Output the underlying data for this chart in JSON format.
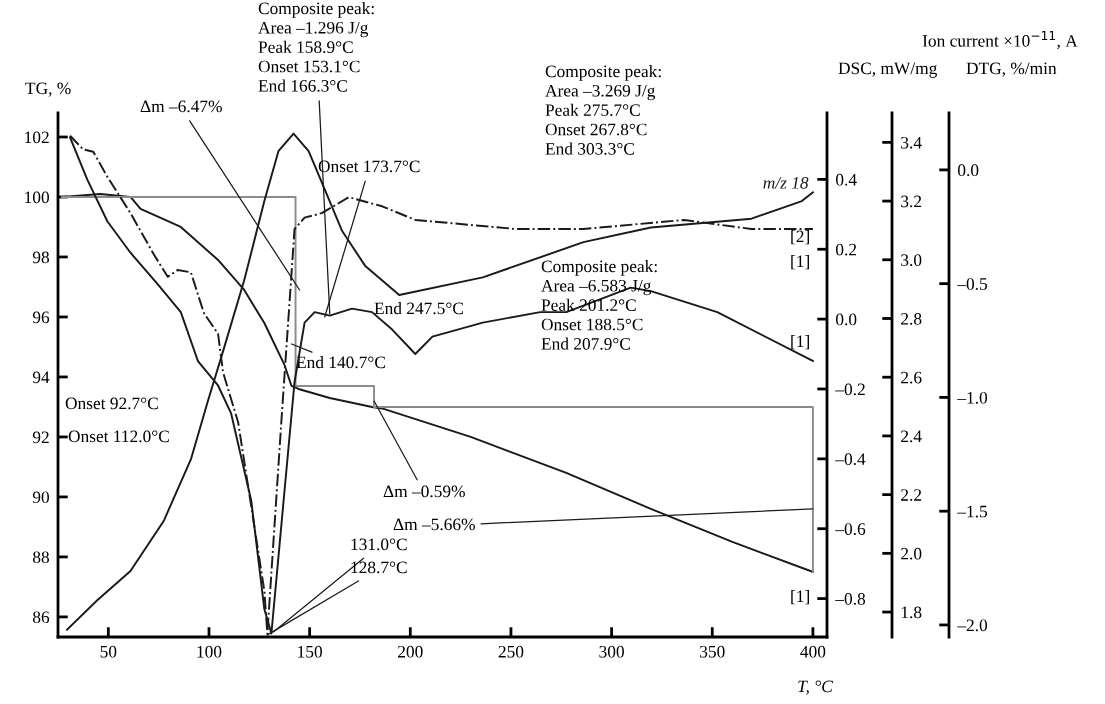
{
  "chart_data": [
    {
      "type": "line",
      "xlabel": "T, °C",
      "ylabel": "TG, %",
      "y2label": "DSC, mW/mg",
      "y3label": "Ion current ×10$^{−11}$, A",
      "xlim": [
        25,
        407
      ],
      "xticks": [
        50,
        100,
        150,
        200,
        250,
        300,
        350,
        400
      ],
      "ylim": [
        85.33,
        102.8
      ],
      "yticks": [
        86,
        88,
        90,
        92,
        94,
        96,
        98,
        100,
        102
      ],
      "y2lim": [
        -0.91,
        0.59
      ],
      "y2ticks": [
        {
          "value": -0.8,
          "label": "–0.8"
        },
        {
          "value": -0.6,
          "label": "–0.6"
        },
        {
          "value": -0.4,
          "label": "–0.4"
        },
        {
          "value": -0.2,
          "label": "–0.2"
        },
        {
          "value": 0,
          "label": "0.0"
        },
        0.2,
        0.4
      ],
      "y3lim": [
        1.715,
        3.5
      ],
      "y3ticks": [
        1.8,
        {
          "value": 2,
          "label": "2.0"
        },
        2.2,
        2.4,
        2.6,
        2.8,
        {
          "value": 3,
          "label": "3.0"
        },
        3.2,
        3.4
      ],
      "marker": "none",
      "series": [
        {
          "color": "#1a1a1a",
          "line_style": "solid",
          "x": [
            27,
            46,
            61,
            66,
            86,
            104.5,
            117.5,
            127.5,
            137.5,
            141,
            144.5,
            160,
            181,
            186,
            230,
            277.5,
            319.5,
            360,
            400
          ],
          "values": [
            100.0,
            100.1,
            100.0,
            99.6,
            99.0,
            97.9,
            96.9,
            95.8,
            94.4,
            93.7,
            93.6,
            93.3,
            93.0,
            92.95,
            92.0,
            90.8,
            89.6,
            88.5,
            87.5
          ]
        },
        {
          "color": "#1a1a1a",
          "line_style": "solid",
          "axis": "y2",
          "x": [
            31,
            39.5,
            49.5,
            61,
            74.5,
            86,
            94.5,
            104.5,
            111,
            121,
            127.5,
            131,
            142.5,
            147.5,
            152.5,
            160,
            171,
            181,
            191,
            202.5,
            211,
            236,
            264.5,
            277.5,
            309.5,
            319.5,
            352.5,
            400
          ],
          "values": [
            0.52,
            0.4,
            0.28,
            0.19,
            0.1,
            0.02,
            -0.12,
            -0.19,
            -0.27,
            -0.52,
            -0.83,
            -0.9,
            -0.18,
            -0.01,
            0.02,
            0.01,
            0.03,
            0.02,
            -0.03,
            -0.1,
            -0.05,
            -0.01,
            0.02,
            0.02,
            0.09,
            0.08,
            0.02,
            -0.12
          ]
        },
        {
          "name": "m/z 18",
          "color": "#1a1a1a",
          "line_style": "solid",
          "axis": "y3",
          "x": [
            29.5,
            44.5,
            61,
            77.5,
            91,
            99.5,
            107.5,
            117.5,
            127.5,
            134.5,
            142,
            149.5,
            157.5,
            166,
            177.5,
            194.5,
            236,
            286,
            319.5,
            369.5,
            394.5,
            400
          ],
          "values": [
            1.74,
            1.84,
            1.94,
            2.11,
            2.32,
            2.52,
            2.7,
            2.93,
            3.2,
            3.37,
            3.43,
            3.37,
            3.24,
            3.1,
            2.98,
            2.88,
            2.94,
            3.06,
            3.11,
            3.14,
            3.2,
            3.23
          ]
        },
        {
          "color": "#8c8c8c",
          "line_style": "solid",
          "x": [
            27,
            143,
            143,
            182,
            182,
            400,
            400
          ],
          "values": [
            100.0,
            100.0,
            93.7,
            93.7,
            93.0,
            93.0,
            87.5
          ]
        }
      ],
      "annotations": [
        {
          "text": "Composite peak:\nArea –1.296 J/g\nPeak 158.9°C\nOnset 153.1°C\nEnd 166.3°C",
          "x": 160,
          "y": 96.1
        },
        {
          "text": "Δm –6.47%",
          "x": 145,
          "y": 96.9
        },
        {
          "text": "Onset 173.7°C",
          "x": 157.5,
          "y": 96.0
        },
        {
          "text": "End 140.7°C",
          "x": 141,
          "y": 95.1
        },
        "End 247.5°C",
        "Composite peak:\nArea –3.269 J/g\nPeak 275.7°C\nOnset 267.8°C\nEnd 303.3°C",
        "Composite peak:\nArea –6.583 J/g\nPeak 201.2°C\nOnset 188.5°C\nEnd 207.9°C",
        "Onset 92.7°C",
        "Onset 112.0°C",
        {
          "text": "Δm –0.59%",
          "x": 182,
          "y": 93.2
        },
        {
          "text": "Δm –5.66%",
          "x": 400,
          "y": 89.6
        },
        {
          "text": "131.0°C",
          "x": 132,
          "y": 85.5
        },
        {
          "text": "128.7°C",
          "x": 129,
          "y": 85.4
        },
        "[2]",
        "[1]",
        "[1]",
        "[1]"
      ]
    },
    {
      "type": "line",
      "ylabel": "DTG, %/min",
      "xlim": [
        25,
        407
      ],
      "tick_labels": "y",
      "ylim": [
        -2.053,
        0.25
      ],
      "yticks": [
        {
          "value": -2,
          "label": "–2.0"
        },
        {
          "value": -1.5,
          "label": "–1.5"
        },
        {
          "value": -1,
          "label": "–1.0"
        },
        {
          "value": -0.5,
          "label": "–0.5"
        },
        {
          "value": 0,
          "label": "0.0"
        }
      ],
      "marker": "none",
      "series": [
        {
          "color": "#1a1a1a",
          "line_style": "dashdot",
          "x": [
            31,
            37.5,
            42.5,
            49.5,
            61,
            72.5,
            79.5,
            84.5,
            91,
            97.5,
            104.5,
            107,
            114.5,
            121,
            127.5,
            129,
            136,
            142.5,
            147.5,
            156,
            169.5,
            186,
            202.5,
            252.5,
            286,
            336,
            369.5,
            400
          ],
          "values": [
            0.15,
            0.09,
            0.08,
            -0.03,
            -0.19,
            -0.37,
            -0.47,
            -0.44,
            -0.45,
            -0.63,
            -0.72,
            -0.89,
            -1.11,
            -1.48,
            -1.85,
            -2.04,
            -1.1,
            -0.26,
            -0.21,
            -0.19,
            -0.12,
            -0.16,
            -0.22,
            -0.26,
            -0.26,
            -0.22,
            -0.26,
            -0.26
          ]
        }
      ]
    }
  ]
}
